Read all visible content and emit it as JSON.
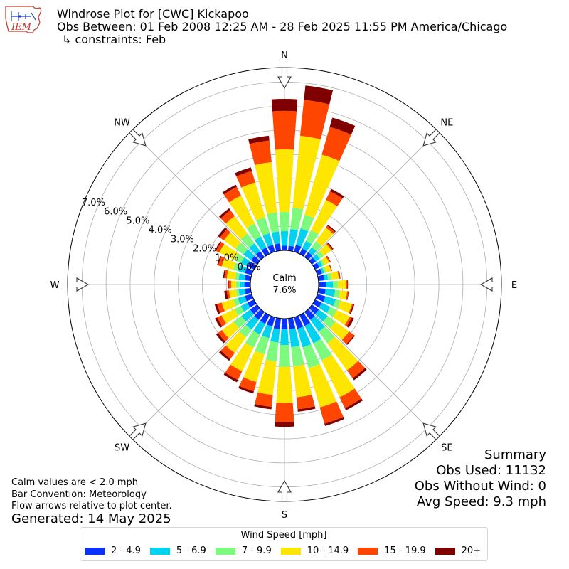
{
  "header": {
    "logo_text": "IEM",
    "title_line1": "Windrose Plot for [CWC] Kickapoo",
    "title_line2": "Obs Between: 01 Feb 2008 12:25 AM - 28 Feb 2025 11:55 PM America/Chicago",
    "title_line3": "↳ constraints: Feb"
  },
  "notes": {
    "calm_note": "Calm values are < 2.0 mph",
    "bar_convention": "Bar Convention: Meteorology",
    "flow_arrows": "Flow arrows relative to plot center.",
    "generated": "Generated: 14 May 2025"
  },
  "summary": {
    "heading": "Summary",
    "obs_used": "Obs Used: 11132",
    "obs_without_wind": "Obs Without Wind: 0",
    "avg_speed": "Avg Speed: 9.3 mph"
  },
  "colors": {
    "2 - 4.9": "#0a32ff",
    "5 - 6.9": "#00d2f0",
    "7 - 9.9": "#7dfa7d",
    "10 - 14.9": "#ffe600",
    "15 - 19.9": "#ff4600",
    "20+": "#800000"
  },
  "chart_data": {
    "type": "windrose",
    "legend_title": "Wind Speed [mph]",
    "legend_placement": "bottom-center",
    "calm_label": "Calm",
    "calm_value": "7.6%",
    "calm_percent": 7.6,
    "grid": true,
    "r_tick_labels": [
      "0.0%",
      "1.0%",
      "2.0%",
      "3.0%",
      "4.0%",
      "5.0%",
      "6.0%",
      "7.0%"
    ],
    "r_max_percent": 7.6,
    "compass_labels": [
      "N",
      "NE",
      "E",
      "SE",
      "S",
      "SW",
      "W",
      "NW"
    ],
    "speed_bins": [
      "2 - 4.9",
      "5 - 6.9",
      "7 - 9.9",
      "10 - 14.9",
      "15 - 19.9",
      "20+"
    ],
    "directions_deg": [
      0,
      10,
      20,
      30,
      40,
      50,
      60,
      70,
      80,
      90,
      100,
      110,
      120,
      130,
      140,
      150,
      160,
      170,
      180,
      190,
      200,
      210,
      220,
      230,
      240,
      250,
      260,
      270,
      280,
      290,
      300,
      310,
      320,
      330,
      340,
      350
    ],
    "cumulative_percent": [
      [
        0.2,
        0.8,
        1.6,
        4.2,
        5.8,
        6.3
      ],
      [
        0.2,
        0.9,
        1.8,
        4.8,
        6.3,
        6.9
      ],
      [
        0.3,
        1.0,
        1.6,
        4.2,
        5.4,
        5.8
      ],
      [
        0.25,
        0.6,
        1.1,
        2.5,
        2.9,
        3.0
      ],
      [
        0.25,
        0.5,
        0.8,
        1.5,
        1.6,
        1.65
      ],
      [
        0.2,
        0.4,
        0.6,
        1.0,
        1.05,
        1.1
      ],
      [
        0.2,
        0.35,
        0.45,
        0.65,
        0.7,
        0.72
      ],
      [
        0.2,
        0.3,
        0.4,
        0.6,
        0.62,
        0.64
      ],
      [
        0.25,
        0.4,
        0.55,
        0.85,
        0.9,
        0.92
      ],
      [
        0.3,
        0.6,
        0.8,
        1.15,
        1.2,
        1.22
      ],
      [
        0.3,
        0.7,
        0.9,
        1.2,
        1.25,
        1.27
      ],
      [
        0.35,
        0.8,
        1.0,
        1.5,
        1.55,
        1.6
      ],
      [
        0.3,
        0.7,
        1.0,
        1.6,
        1.7,
        1.8
      ],
      [
        0.35,
        0.8,
        1.2,
        1.9,
        2.15,
        2.2
      ],
      [
        0.4,
        1.0,
        1.6,
        3.0,
        3.4,
        3.5
      ],
      [
        0.5,
        1.3,
        2.1,
        3.8,
        4.3,
        4.4
      ],
      [
        0.5,
        1.3,
        2.2,
        3.9,
        4.6,
        4.7
      ],
      [
        0.45,
        1.2,
        2.0,
        3.3,
        3.8,
        3.9
      ],
      [
        0.45,
        1.1,
        2.0,
        3.5,
        4.3,
        4.5
      ],
      [
        0.45,
        1.0,
        1.8,
        3.2,
        3.7,
        3.8
      ],
      [
        0.4,
        0.9,
        1.6,
        2.8,
        3.2,
        3.3
      ],
      [
        0.4,
        0.9,
        1.5,
        2.6,
        3.0,
        3.1
      ],
      [
        0.4,
        0.9,
        1.3,
        2.1,
        2.4,
        2.5
      ],
      [
        0.35,
        0.8,
        1.2,
        1.8,
        2.0,
        2.1
      ],
      [
        0.3,
        0.6,
        0.9,
        1.5,
        1.7,
        1.8
      ],
      [
        0.3,
        0.6,
        0.8,
        1.3,
        1.5,
        1.6
      ],
      [
        0.25,
        0.5,
        0.6,
        0.9,
        1.0,
        1.1
      ],
      [
        0.25,
        0.45,
        0.6,
        0.8,
        0.9,
        0.95
      ],
      [
        0.25,
        0.5,
        0.65,
        1.0,
        1.1,
        1.15
      ],
      [
        0.3,
        0.6,
        0.8,
        1.3,
        1.45,
        1.5
      ],
      [
        0.3,
        0.6,
        0.9,
        1.6,
        1.75,
        1.8
      ],
      [
        0.3,
        0.7,
        1.1,
        1.7,
        1.9,
        2.0
      ],
      [
        0.3,
        0.7,
        1.2,
        2.1,
        2.4,
        2.5
      ],
      [
        0.3,
        0.8,
        1.4,
        2.7,
        3.1,
        3.2
      ],
      [
        0.3,
        0.8,
        1.5,
        3.0,
        3.5,
        3.65
      ],
      [
        0.3,
        0.8,
        1.6,
        3.7,
        4.6,
        4.8
      ]
    ]
  }
}
